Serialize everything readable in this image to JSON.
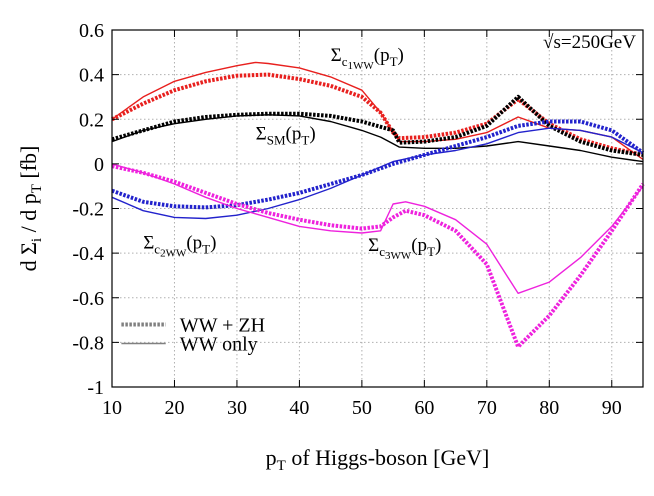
{
  "chart_data": {
    "type": "line",
    "xlabel": "p_T of Higgs-boson [GeV]",
    "ylabel": "d Σ_i / d p_T [fb]",
    "xlim": [
      10,
      95
    ],
    "ylim": [
      -1,
      0.6
    ],
    "xticks": [
      10,
      20,
      30,
      40,
      50,
      60,
      70,
      80,
      90
    ],
    "yticks": [
      -1,
      -0.8,
      -0.6,
      -0.4,
      -0.2,
      0,
      0.2,
      0.4,
      0.6
    ],
    "grid": true,
    "legend_position": "bottom-left",
    "legend": [
      {
        "label": "WW + ZH",
        "style": "dotted-thick"
      },
      {
        "label": "WW only",
        "style": "solid-thin"
      }
    ],
    "annotations": [
      {
        "id": "sqrt_s",
        "parts": [
          {
            "t": "√s=250GeV"
          }
        ],
        "x": 79,
        "y": 0.52
      },
      {
        "id": "c1ww",
        "parts": [
          {
            "t": "Σ"
          },
          {
            "t": "c",
            "sub": true
          },
          {
            "t": "1WW",
            "sub2": true
          },
          {
            "t": "(p"
          },
          {
            "t": "T",
            "sub": true
          },
          {
            "t": ")"
          }
        ],
        "x": 45,
        "y": 0.46
      },
      {
        "id": "sm",
        "parts": [
          {
            "t": "Σ"
          },
          {
            "t": "SM",
            "sub": true
          },
          {
            "t": "(p"
          },
          {
            "t": "T",
            "sub": true
          },
          {
            "t": ")"
          }
        ],
        "x": 33,
        "y": 0.11
      },
      {
        "id": "c2ww",
        "parts": [
          {
            "t": "Σ"
          },
          {
            "t": "c",
            "sub": true
          },
          {
            "t": "2WW",
            "sub2": true
          },
          {
            "t": "(p"
          },
          {
            "t": "T",
            "sub": true
          },
          {
            "t": ")"
          }
        ],
        "x": 15,
        "y": -0.38
      },
      {
        "id": "c3ww",
        "parts": [
          {
            "t": "Σ"
          },
          {
            "t": "c",
            "sub": true
          },
          {
            "t": "3WW",
            "sub2": true
          },
          {
            "t": "(p"
          },
          {
            "t": "T",
            "sub": true
          },
          {
            "t": ")"
          }
        ],
        "x": 51,
        "y": -0.39
      }
    ],
    "colors": {
      "red": "#e8201e",
      "black": "#000000",
      "blue": "#2222cc",
      "magenta": "#ee22dd",
      "legend_gray": "#808080"
    },
    "series": [
      {
        "id": "c1ww_full",
        "color": "red",
        "style": "dotted",
        "x": [
          10,
          15,
          20,
          25,
          30,
          35,
          40,
          45,
          50,
          53,
          55,
          56,
          60,
          65,
          70,
          75,
          80,
          85,
          90,
          95
        ],
        "y": [
          0.2,
          0.27,
          0.33,
          0.37,
          0.395,
          0.4,
          0.38,
          0.35,
          0.3,
          0.23,
          0.14,
          0.115,
          0.12,
          0.14,
          0.18,
          0.29,
          0.18,
          0.11,
          0.07,
          0.04
        ]
      },
      {
        "id": "c1ww_ww",
        "color": "red",
        "style": "solid",
        "x": [
          10,
          15,
          20,
          25,
          30,
          33,
          35,
          40,
          45,
          50,
          53,
          56,
          60,
          65,
          70,
          75,
          80,
          85,
          90,
          95
        ],
        "y": [
          0.2,
          0.3,
          0.37,
          0.41,
          0.44,
          0.455,
          0.45,
          0.43,
          0.39,
          0.33,
          0.23,
          0.1,
          0.1,
          0.11,
          0.14,
          0.21,
          0.16,
          0.15,
          0.12,
          0.02
        ]
      },
      {
        "id": "sm_full",
        "color": "black",
        "style": "dotted",
        "x": [
          10,
          15,
          20,
          25,
          30,
          35,
          40,
          45,
          50,
          55,
          56,
          60,
          65,
          70,
          75,
          80,
          85,
          90,
          95
        ],
        "y": [
          0.11,
          0.15,
          0.19,
          0.21,
          0.22,
          0.225,
          0.225,
          0.215,
          0.19,
          0.15,
          0.095,
          0.1,
          0.12,
          0.17,
          0.3,
          0.17,
          0.1,
          0.06,
          0.04
        ]
      },
      {
        "id": "sm_ww",
        "color": "black",
        "style": "solid",
        "x": [
          10,
          15,
          20,
          25,
          30,
          35,
          40,
          45,
          50,
          53,
          56,
          60,
          65,
          70,
          75,
          80,
          85,
          90,
          95
        ],
        "y": [
          0.1,
          0.15,
          0.18,
          0.2,
          0.215,
          0.22,
          0.215,
          0.19,
          0.15,
          0.12,
          0.075,
          0.07,
          0.07,
          0.08,
          0.1,
          0.08,
          0.06,
          0.03,
          0.01
        ]
      },
      {
        "id": "c2ww_full",
        "color": "blue",
        "style": "dotted",
        "x": [
          10,
          15,
          20,
          25,
          30,
          35,
          40,
          45,
          50,
          55,
          60,
          65,
          70,
          75,
          80,
          85,
          90,
          95
        ],
        "y": [
          -0.12,
          -0.17,
          -0.19,
          -0.195,
          -0.185,
          -0.16,
          -0.13,
          -0.09,
          -0.05,
          0.0,
          0.04,
          0.08,
          0.12,
          0.17,
          0.19,
          0.19,
          0.15,
          0.05
        ]
      },
      {
        "id": "c2ww_ww",
        "color": "blue",
        "style": "solid",
        "x": [
          10,
          15,
          20,
          25,
          30,
          35,
          40,
          45,
          50,
          55,
          60,
          65,
          70,
          75,
          80,
          85,
          90,
          95
        ],
        "y": [
          -0.15,
          -0.21,
          -0.24,
          -0.245,
          -0.23,
          -0.2,
          -0.16,
          -0.11,
          -0.05,
          0.01,
          0.04,
          0.06,
          0.09,
          0.14,
          0.16,
          0.15,
          0.12,
          0.05
        ]
      },
      {
        "id": "c3ww_full",
        "color": "magenta",
        "style": "dotted",
        "x": [
          10,
          15,
          20,
          25,
          30,
          35,
          40,
          45,
          50,
          53,
          55,
          57,
          60,
          65,
          70,
          75,
          80,
          85,
          90,
          95
        ],
        "y": [
          -0.01,
          -0.04,
          -0.08,
          -0.13,
          -0.18,
          -0.22,
          -0.25,
          -0.275,
          -0.29,
          -0.28,
          -0.24,
          -0.21,
          -0.23,
          -0.3,
          -0.45,
          -0.82,
          -0.68,
          -0.5,
          -0.3,
          -0.09
        ]
      },
      {
        "id": "c3ww_ww",
        "color": "magenta",
        "style": "solid",
        "x": [
          10,
          15,
          20,
          25,
          30,
          35,
          40,
          45,
          50,
          53,
          55,
          57,
          60,
          65,
          70,
          75,
          80,
          85,
          90,
          95
        ],
        "y": [
          0.0,
          -0.04,
          -0.09,
          -0.15,
          -0.2,
          -0.24,
          -0.28,
          -0.3,
          -0.31,
          -0.3,
          -0.18,
          -0.17,
          -0.19,
          -0.25,
          -0.36,
          -0.58,
          -0.53,
          -0.42,
          -0.28,
          -0.1
        ]
      }
    ]
  }
}
